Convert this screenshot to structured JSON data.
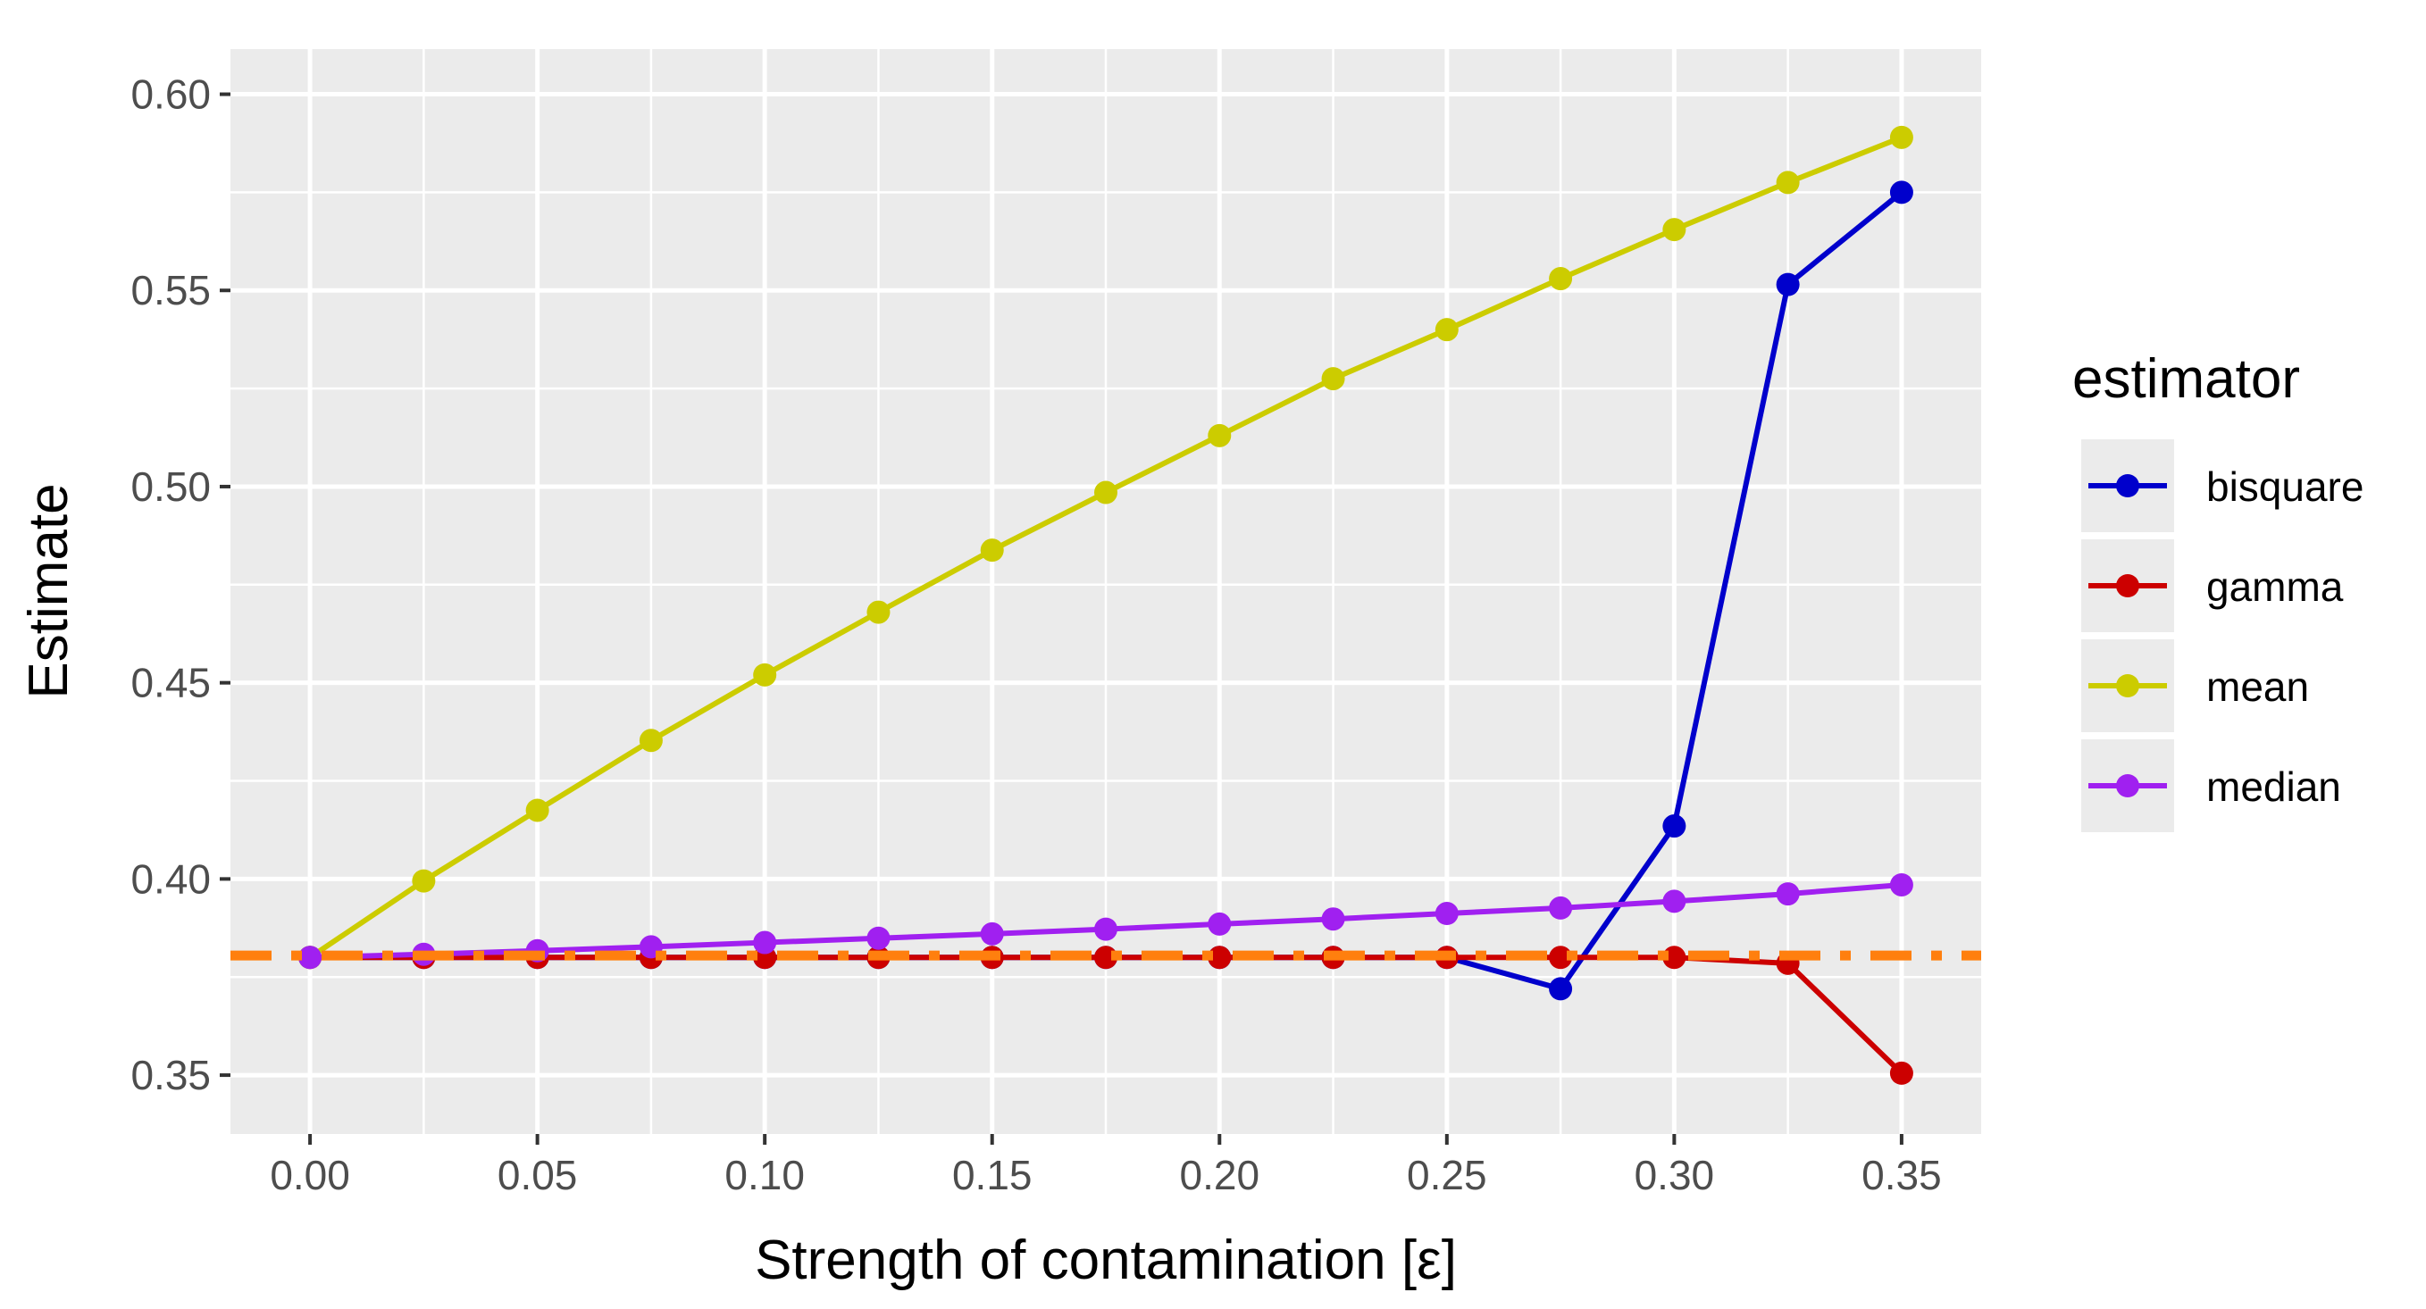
{
  "chart_data": {
    "type": "line",
    "title": "",
    "xlabel": "Strength of contamination [ε]",
    "ylabel": "Estimate",
    "xlim": [
      -0.0175,
      0.3675
    ],
    "ylim": [
      0.335,
      0.6115
    ],
    "x_ticks": [
      0.0,
      0.05,
      0.1,
      0.15,
      0.2,
      0.25,
      0.3,
      0.35
    ],
    "x_tick_labels": [
      "0.00",
      "0.05",
      "0.10",
      "0.15",
      "0.20",
      "0.25",
      "0.30",
      "0.35"
    ],
    "x_minor_ticks": [
      0.025,
      0.075,
      0.125,
      0.175,
      0.225,
      0.275,
      0.325
    ],
    "y_ticks": [
      0.35,
      0.4,
      0.45,
      0.5,
      0.55,
      0.6
    ],
    "y_tick_labels": [
      "0.35",
      "0.40",
      "0.45",
      "0.50",
      "0.55",
      "0.60"
    ],
    "y_minor_ticks": [
      0.375,
      0.425,
      0.475,
      0.525,
      0.575
    ],
    "grid": true,
    "legend_title": "estimator",
    "legend_position": "right",
    "x": [
      0.0,
      0.025,
      0.05,
      0.075,
      0.1,
      0.125,
      0.15,
      0.175,
      0.2,
      0.225,
      0.25,
      0.275,
      0.3,
      0.325,
      0.35
    ],
    "series": [
      {
        "name": "bisquare",
        "color": "#0000cc",
        "values": [
          0.38,
          0.38,
          0.38,
          0.38,
          0.38,
          0.38,
          0.38,
          0.38,
          0.38,
          0.38,
          0.38,
          0.372,
          0.4135,
          0.5515,
          0.575
        ]
      },
      {
        "name": "gamma",
        "color": "#cc0000",
        "values": [
          0.38,
          0.38,
          0.38,
          0.38,
          0.38,
          0.38,
          0.38,
          0.38,
          0.38,
          0.38,
          0.38,
          0.38,
          0.38,
          0.3785,
          0.3505
        ]
      },
      {
        "name": "mean",
        "color": "#cccc00",
        "values": [
          0.38,
          0.3995,
          0.4175,
          0.4353,
          0.452,
          0.468,
          0.4838,
          0.4985,
          0.513,
          0.5275,
          0.54,
          0.553,
          0.5655,
          0.5775,
          0.589
        ]
      },
      {
        "name": "median",
        "color": "#a020f0",
        "values": [
          0.38,
          0.3808,
          0.3817,
          0.3827,
          0.3838,
          0.3849,
          0.386,
          0.3872,
          0.3885,
          0.3898,
          0.3912,
          0.3926,
          0.3943,
          0.3962,
          0.3985
        ]
      }
    ],
    "reference_line": {
      "y": 0.3805,
      "color": "#ff7f0e",
      "style": "dot-dash"
    },
    "plot_background": "#ebebeb",
    "grid_color": "#ffffff"
  }
}
